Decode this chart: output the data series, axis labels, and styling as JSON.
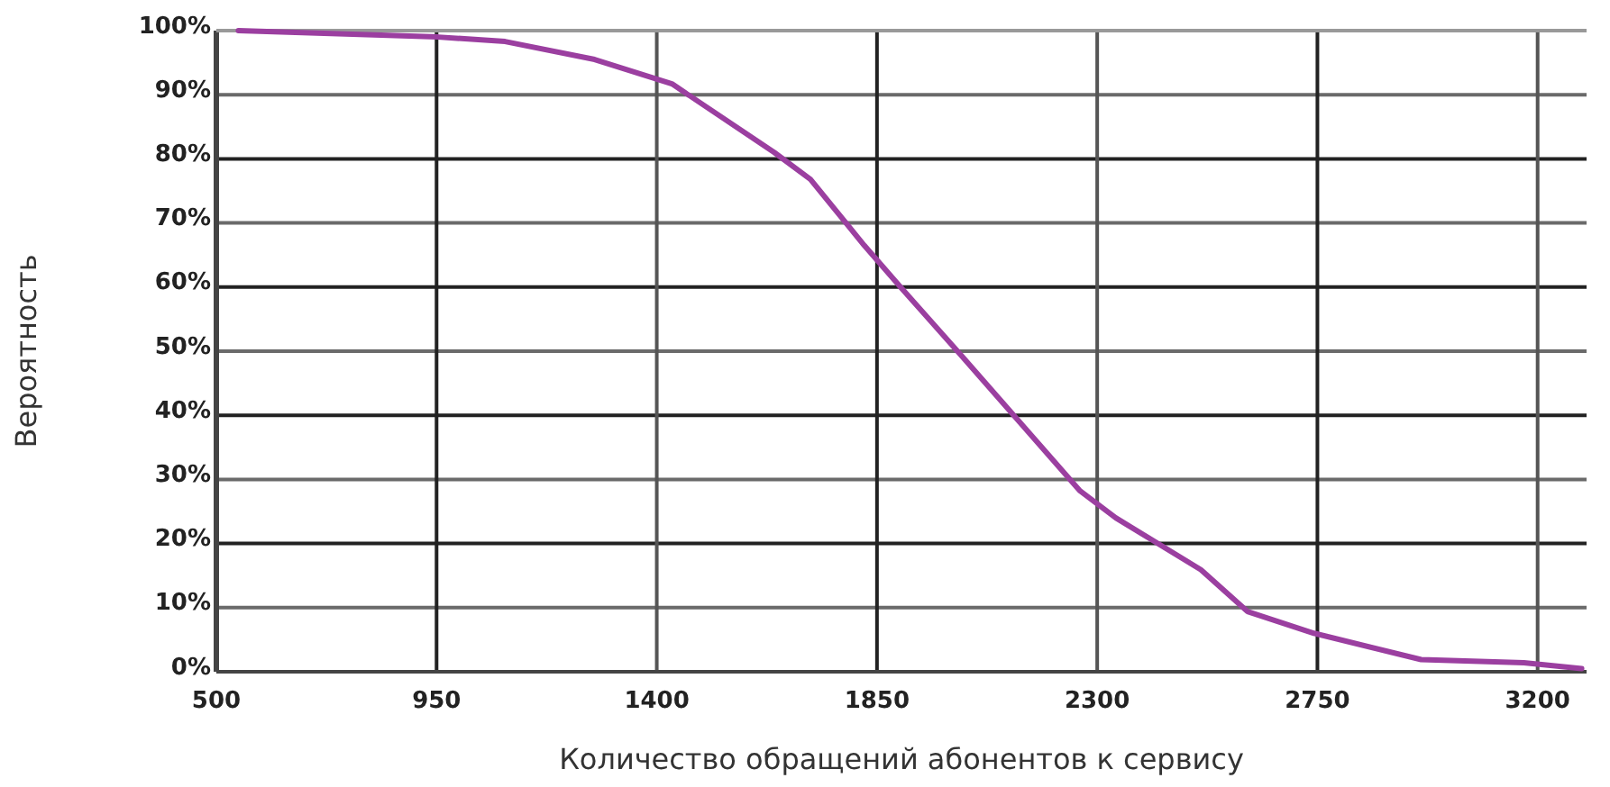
{
  "chart_data": {
    "type": "line",
    "xlabel": "Количество обращений абонентов к сервису",
    "ylabel": "Вероятность",
    "x": [
      545,
      953,
      1090,
      1273,
      1431,
      1640,
      1714,
      1824,
      1898,
      2019,
      2265,
      2338,
      2512,
      2607,
      2743,
      2962,
      3172,
      3290
    ],
    "series": [
      {
        "color": "#9b3fa0",
        "values": [
          100,
          99,
          98.3,
          95.5,
          91.7,
          81,
          76.8,
          66.5,
          60,
          49.6,
          28.2,
          24,
          15.9,
          9.4,
          6,
          1.9,
          1.4,
          0.5
        ]
      }
    ],
    "xlim": [
      500,
      3300
    ],
    "xticks": [
      500,
      950,
      1400,
      1850,
      2300,
      2750,
      3200
    ],
    "ylim": [
      0,
      100
    ],
    "yticks": [
      {
        "value": 0,
        "label": "0%"
      },
      {
        "value": 10,
        "label": "10%"
      },
      {
        "value": 20,
        "label": "20%"
      },
      {
        "value": 30,
        "label": "30%"
      },
      {
        "value": 40,
        "label": "40%"
      },
      {
        "value": 50,
        "label": "50%"
      },
      {
        "value": 60,
        "label": "60%"
      },
      {
        "value": 70,
        "label": "70%"
      },
      {
        "value": 80,
        "label": "80%"
      },
      {
        "value": 90,
        "label": "90%"
      },
      {
        "value": 100,
        "label": "100%"
      }
    ],
    "grid": true,
    "marker": "none",
    "line_style": "solid"
  }
}
